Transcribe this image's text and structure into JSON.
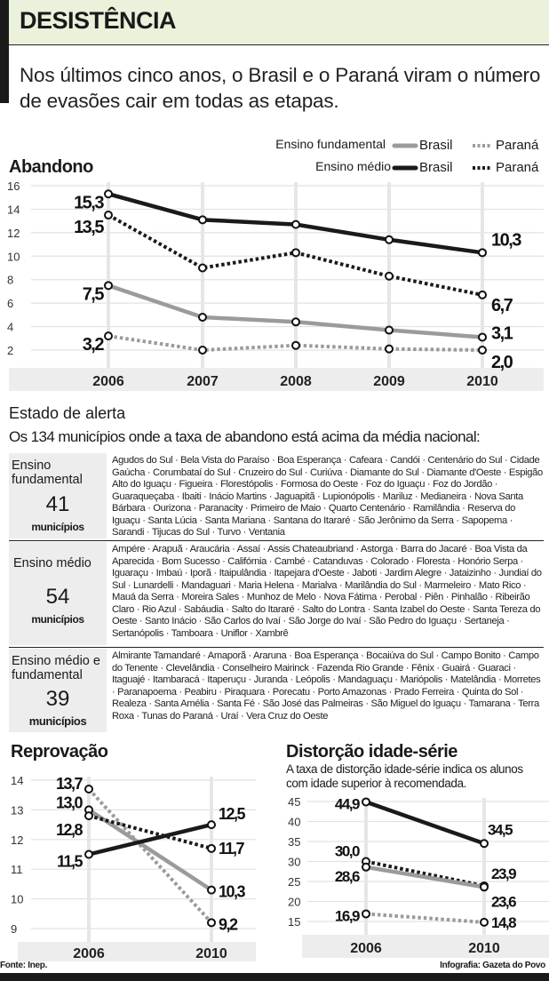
{
  "header": {
    "title": "DESISTÊNCIA",
    "subtitle": "Nos últimos cinco anos, o Brasil e o Paraná viram o número de evasões cair em todas as etapas."
  },
  "legend": {
    "fundamental_label": "Ensino fundamental",
    "medio_label": "Ensino médio",
    "brasil": "Brasil",
    "parana": "Paraná"
  },
  "colors": {
    "header_bg": "#eaf2dc",
    "fundamental": "#9b9b9b",
    "medio": "#1a1a1a",
    "year_band": "#ededed"
  },
  "chart_data": [
    {
      "type": "line",
      "title": "Abandono",
      "x": [
        "2006",
        "2007",
        "2008",
        "2009",
        "2010"
      ],
      "ylim": [
        1,
        16
      ],
      "yticks": [
        2,
        4,
        6,
        8,
        10,
        12,
        14,
        16
      ],
      "grid": true,
      "legend": "top-right",
      "series": [
        {
          "name": "Ensino médio Brasil",
          "style": "solid-black",
          "values": [
            15.3,
            13.1,
            12.7,
            11.4,
            10.3
          ],
          "labels": [
            "15,3",
            "10,3"
          ]
        },
        {
          "name": "Ensino médio Paraná",
          "style": "dotted-black",
          "values": [
            13.5,
            9.0,
            10.3,
            8.3,
            6.7
          ],
          "labels": [
            "13,5",
            "6,7"
          ]
        },
        {
          "name": "Ensino fundamental Brasil",
          "style": "solid-gray",
          "values": [
            7.5,
            4.8,
            4.4,
            3.7,
            3.1
          ],
          "labels": [
            "7,5",
            "3,1"
          ]
        },
        {
          "name": "Ensino fundamental Paraná",
          "style": "dotted-gray",
          "values": [
            3.2,
            2.0,
            2.4,
            2.1,
            2.0
          ],
          "labels": [
            "3,2",
            "2,0"
          ]
        }
      ]
    },
    {
      "type": "line",
      "title": "Reprovação",
      "x": [
        "2006",
        "2010"
      ],
      "ylim": [
        8.7,
        14
      ],
      "yticks": [
        9,
        10,
        11,
        12,
        13,
        14
      ],
      "grid": true,
      "series": [
        {
          "name": "Ensino fundamental Paraná",
          "style": "dotted-gray",
          "values": [
            13.7,
            9.2
          ],
          "labels": [
            "13,7",
            "9,2"
          ]
        },
        {
          "name": "Ensino fundamental Brasil",
          "style": "solid-gray",
          "values": [
            13.0,
            10.3
          ],
          "labels": [
            "13,0",
            "10,3"
          ]
        },
        {
          "name": "Ensino médio Paraná",
          "style": "dotted-black",
          "values": [
            12.8,
            11.7
          ],
          "labels": [
            "12,8",
            "11,7"
          ]
        },
        {
          "name": "Ensino médio Brasil",
          "style": "solid-black",
          "values": [
            11.5,
            12.5
          ],
          "labels": [
            "11,5",
            "12,5"
          ]
        }
      ]
    },
    {
      "type": "line",
      "title": "Distorção idade-série",
      "subtitle": "A taxa de distorção idade-série indica os alunos com idade superior à recomendada.",
      "x": [
        "2006",
        "2010"
      ],
      "ylim": [
        12,
        45
      ],
      "yticks": [
        15,
        20,
        25,
        30,
        35,
        40,
        45
      ],
      "grid": true,
      "series": [
        {
          "name": "Ensino médio Brasil",
          "style": "solid-black",
          "values": [
            44.9,
            34.5
          ],
          "labels": [
            "44,9",
            "34,5"
          ]
        },
        {
          "name": "Ensino médio Paraná",
          "style": "dotted-black",
          "values": [
            30.0,
            23.9
          ],
          "labels": [
            "30,0",
            "23,9"
          ]
        },
        {
          "name": "Ensino fundamental Brasil",
          "style": "solid-gray",
          "values": [
            28.6,
            23.6
          ],
          "labels": [
            "28,6",
            "23,6"
          ]
        },
        {
          "name": "Ensino fundamental Paraná",
          "style": "dotted-gray",
          "values": [
            16.9,
            14.8
          ],
          "labels": [
            "16,9",
            "14,8"
          ]
        }
      ]
    }
  ],
  "alert": {
    "title": "Estado de alerta",
    "subtitle": "Os 134 municípios onde a taxa de abandono está acima da média nacional:",
    "rows": [
      {
        "category": "Ensino fundamental",
        "count": "41",
        "unit": "municípios",
        "municipalities": [
          "Agudos do Sul",
          "Bela Vista do Paraíso",
          "Boa Esperança",
          "Cafeara",
          "Candói",
          "Centenário do Sul",
          "Cidade Gaúcha",
          "Corumbataí do Sul",
          "Cruzeiro do Sul",
          "Curiúva",
          "Diamante do Sul",
          "Diamante d'Oeste",
          "Espigão Alto do Iguaçu",
          "Figueira",
          "Florestópolis",
          "Formosa do Oeste",
          "Foz do Iguaçu",
          "Foz do Jordão",
          "Guaraqueçaba",
          "Ibaiti",
          "Inácio Martins",
          "Jaguapitã",
          "Lupionópolis",
          "Mariluz",
          "Medianeira",
          "Nova Santa Bárbara",
          "Ourizona",
          "Paranacity",
          "Primeiro de Maio",
          "Quarto Centenário",
          "Ramilândia",
          "Reserva do Iguaçu",
          "Santa Lúcia",
          "Santa Mariana",
          "Santana do Itararé",
          "São Jerônimo da Serra",
          "Sapopema",
          "Sarandi",
          "Tijucas do Sul",
          "Turvo",
          "Ventania"
        ]
      },
      {
        "category": "Ensino médio",
        "count": "54",
        "unit": "municípios",
        "municipalities": [
          "Ampére",
          "Arapuã",
          "Araucária",
          "Assaí",
          "Assis Chateaubriand",
          "Astorga",
          "Barra do Jacaré",
          "Boa Vista da Aparecida",
          "Bom Sucesso",
          "Califórnia",
          "Cambé",
          "Catanduvas",
          "Colorado",
          "Floresta",
          "Honório Serpa",
          "Iguaraçu",
          "Imbaú",
          "Iporã",
          "Itaipulândia",
          "Itapejara d'Oeste",
          "Jaboti",
          "Jardim Alegre",
          "Jataizinho",
          "Jundiaí do Sul",
          "Lunardelli",
          "Mandaguari",
          "Maria Helena",
          "Marialva",
          "Marilândia do Sul",
          "Marmeleiro",
          "Mato Rico",
          "Mauá da Serra",
          "Moreira Sales",
          "Munhoz de Melo",
          "Nova Fátima",
          "Perobal",
          "Piên",
          "Pinhalão",
          "Ribeirão Claro",
          "Rio Azul",
          "Sabáudia",
          "Salto do Itararé",
          "Salto do Lontra",
          "Santa Izabel do Oeste",
          "Santa Tereza do Oeste",
          "Santo Inácio",
          "São Carlos do Ivaí",
          "São Jorge do Ivaí",
          "São Pedro do Iguaçu",
          "Sertaneja",
          "Sertanópolis",
          "Tamboara",
          "Uniflor",
          "Xambrê"
        ]
      },
      {
        "category": "Ensino médio e fundamental",
        "count": "39",
        "unit": "municípios",
        "municipalities": [
          "Almirante Tamandaré",
          "Amaporã",
          "Araruna",
          "Boa Esperança",
          "Bocaiúva do Sul",
          "Campo Bonito",
          "Campo do Tenente",
          "Clevelândia",
          "Conselheiro Mairinck",
          "Fazenda Rio Grande",
          "Fênix",
          "Guairá",
          "Guaraci",
          "Itaguajé",
          "Itambaracá",
          "Itaperuçu",
          "Juranda",
          "Leópolis",
          "Mandaguaçu",
          "Mariópolis",
          "Matelândia",
          "Morretes",
          "Paranapoema",
          "Peabiru",
          "Piraquara",
          "Porecatu",
          "Porto Amazonas",
          "Prado Ferreira",
          "Quinta do Sol",
          "Realeza",
          "Santa Amélia",
          "Santa Fé",
          "São José das Palmeiras",
          "São Miguel do Iguaçu",
          "Tamarana",
          "Terra Roxa",
          "Tunas do Paraná",
          "Uraí",
          "Vera Cruz do Oeste"
        ]
      }
    ]
  },
  "footer": {
    "source": "Fonte: Inep.",
    "credit": "Infografia: Gazeta do Povo"
  }
}
